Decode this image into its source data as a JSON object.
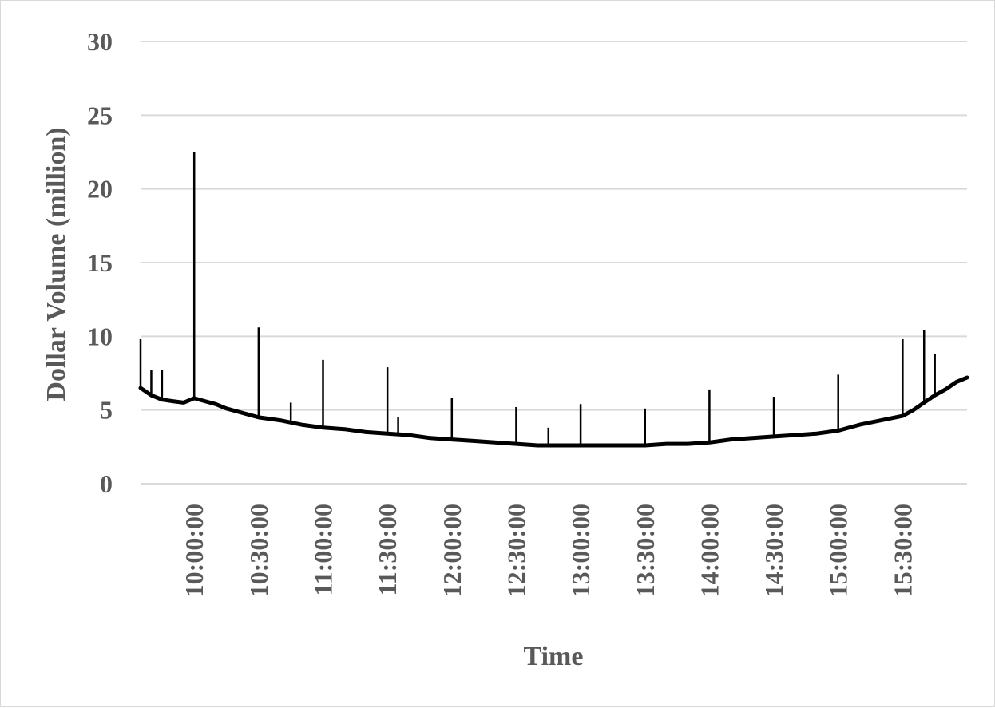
{
  "chart_data": {
    "type": "line",
    "title": "",
    "xlabel": "Time",
    "ylabel": "Dollar Volume (million)",
    "ylim": [
      0,
      30
    ],
    "yticks": [
      0,
      5,
      10,
      15,
      20,
      25,
      30
    ],
    "xlim": [
      "09:35:00",
      "16:00:00"
    ],
    "xticks": [
      "10:00:00",
      "10:30:00",
      "11:00:00",
      "11:30:00",
      "12:00:00",
      "12:30:00",
      "13:00:00",
      "13:30:00",
      "14:00:00",
      "14:30:00",
      "15:00:00",
      "15:30:00"
    ],
    "grid": true,
    "legend": "none",
    "line_color": "#000000",
    "grid_color": "#d9d9d9",
    "text_color": "#595959",
    "series": [
      {
        "x": [
          "09:35:00",
          "09:40:00",
          "09:45:00",
          "09:50:00",
          "09:55:00",
          "10:00:00",
          "10:05:00",
          "10:10:00",
          "10:15:00",
          "10:20:00",
          "10:25:00",
          "10:30:00",
          "10:40:00",
          "10:50:00",
          "11:00:00",
          "11:10:00",
          "11:20:00",
          "11:30:00",
          "11:40:00",
          "11:50:00",
          "12:00:00",
          "12:10:00",
          "12:20:00",
          "12:30:00",
          "12:40:00",
          "12:50:00",
          "13:00:00",
          "13:10:00",
          "13:20:00",
          "13:30:00",
          "13:40:00",
          "13:50:00",
          "14:00:00",
          "14:10:00",
          "14:20:00",
          "14:30:00",
          "14:40:00",
          "14:50:00",
          "15:00:00",
          "15:10:00",
          "15:20:00",
          "15:30:00",
          "15:35:00",
          "15:40:00",
          "15:45:00",
          "15:50:00",
          "15:55:00",
          "16:00:00"
        ],
        "values": [
          6.5,
          6.0,
          5.7,
          5.6,
          5.5,
          5.8,
          5.6,
          5.4,
          5.1,
          4.9,
          4.7,
          4.5,
          4.3,
          4.0,
          3.8,
          3.7,
          3.5,
          3.4,
          3.3,
          3.1,
          3.0,
          2.9,
          2.8,
          2.7,
          2.6,
          2.6,
          2.6,
          2.6,
          2.6,
          2.6,
          2.7,
          2.7,
          2.8,
          3.0,
          3.1,
          3.2,
          3.3,
          3.4,
          3.6,
          4.0,
          4.3,
          4.6,
          5.0,
          5.5,
          6.0,
          6.4,
          6.9,
          7.2
        ]
      }
    ],
    "spikes": [
      {
        "x": "09:35:00",
        "y": 9.8
      },
      {
        "x": "09:40:00",
        "y": 7.7
      },
      {
        "x": "09:45:00",
        "y": 7.7
      },
      {
        "x": "10:00:00",
        "y": 22.5
      },
      {
        "x": "10:30:00",
        "y": 10.6
      },
      {
        "x": "10:45:00",
        "y": 5.5
      },
      {
        "x": "11:00:00",
        "y": 8.4
      },
      {
        "x": "11:30:00",
        "y": 7.9
      },
      {
        "x": "11:35:00",
        "y": 4.5
      },
      {
        "x": "12:00:00",
        "y": 5.8
      },
      {
        "x": "12:30:00",
        "y": 5.2
      },
      {
        "x": "12:45:00",
        "y": 3.8
      },
      {
        "x": "13:00:00",
        "y": 5.4
      },
      {
        "x": "13:30:00",
        "y": 5.1
      },
      {
        "x": "14:00:00",
        "y": 6.4
      },
      {
        "x": "14:30:00",
        "y": 5.9
      },
      {
        "x": "15:00:00",
        "y": 7.4
      },
      {
        "x": "15:30:00",
        "y": 9.8
      },
      {
        "x": "15:40:00",
        "y": 10.4
      },
      {
        "x": "15:45:00",
        "y": 8.8
      }
    ]
  }
}
